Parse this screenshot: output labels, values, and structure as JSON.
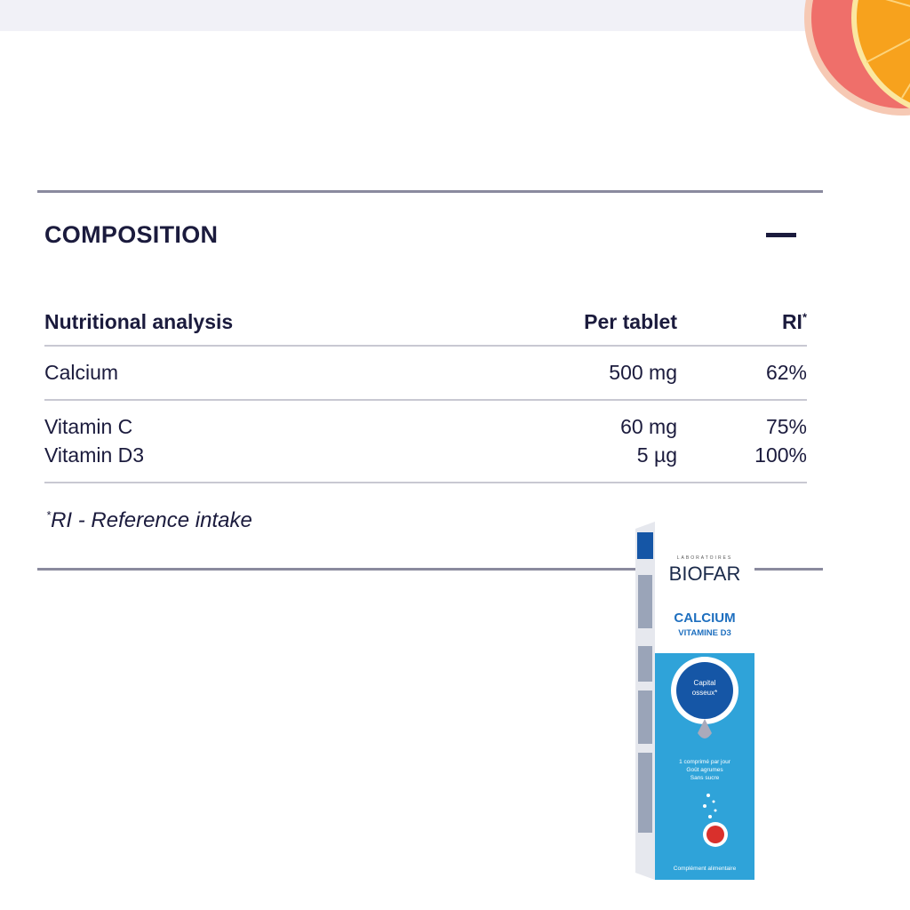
{
  "section": {
    "title": "COMPOSITION",
    "collapse_icon": "minus-icon",
    "table": {
      "headers": [
        "Nutritional analysis",
        "Per tablet",
        "RI"
      ],
      "header_ri_marker": "*",
      "groups": [
        {
          "rows": [
            {
              "name": "Calcium",
              "per_tablet": "500 mg",
              "ri": "62%"
            }
          ]
        },
        {
          "rows": [
            {
              "name": "Vitamin C",
              "per_tablet": "60 mg",
              "ri": "75%"
            },
            {
              "name": "Vitamin D3",
              "per_tablet": "5 µg",
              "ri": "100%"
            }
          ]
        }
      ]
    },
    "footnote_marker": "*",
    "footnote": "RI - Reference intake"
  },
  "product": {
    "brand_small": "LABORATOIRES",
    "brand": "BIOFAR",
    "name": "CALCIUM",
    "subname": "VITAMINE D3",
    "badge": "Capital osseux*",
    "lines": [
      "1 comprimé par jour",
      "Goût agrumes",
      "Sans sucre"
    ],
    "footer": "Complément alimentaire",
    "colors": {
      "blue": "#2fa3d9",
      "navy": "#1556a6",
      "orange": "#e98a1e"
    }
  },
  "colors": {
    "text": "#1b1b3d",
    "rule": "#8a8a9e",
    "topbar": "#f1f1f7"
  }
}
